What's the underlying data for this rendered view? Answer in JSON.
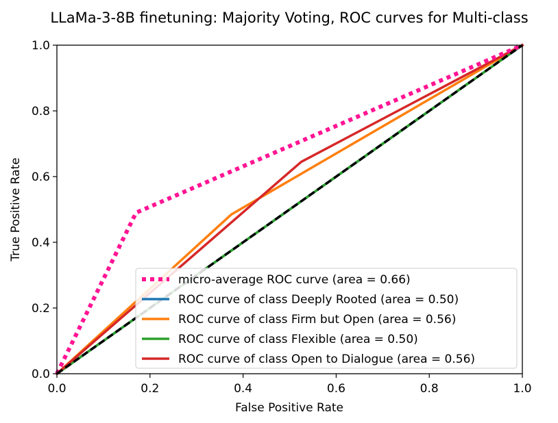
{
  "chart_data": {
    "type": "line",
    "title": "LLaMa-3-8B finetuning: Majority Voting, ROC curves for Multi-class",
    "xlabel": "False Positive Rate",
    "ylabel": "True Positive Rate",
    "xlim": [
      0.0,
      1.0
    ],
    "ylim": [
      0.0,
      1.0
    ],
    "xticks": [
      "0.0",
      "0.2",
      "0.4",
      "0.6",
      "0.8",
      "1.0"
    ],
    "yticks": [
      "0.0",
      "0.2",
      "0.4",
      "0.6",
      "0.8",
      "1.0"
    ],
    "grid": false,
    "legend_position": "lower right",
    "series": [
      {
        "name": "micro-average ROC curve (area = 0.66)",
        "color": "#ff1493",
        "style": "dotted",
        "x": [
          0.0,
          0.17,
          1.0
        ],
        "y": [
          0.0,
          0.49,
          1.0
        ]
      },
      {
        "name": "ROC curve of class Deeply Rooted (area = 0.50)",
        "color": "#1f77b4",
        "style": "solid",
        "x": [
          0.0,
          1.0
        ],
        "y": [
          0.0,
          1.0
        ]
      },
      {
        "name": "ROC curve of class Firm but Open (area = 0.56)",
        "color": "#ff7f0e",
        "style": "solid",
        "x": [
          0.0,
          0.375,
          1.0
        ],
        "y": [
          0.0,
          0.485,
          1.0
        ]
      },
      {
        "name": "ROC curve of class Flexible (area = 0.50)",
        "color": "#2ca02c",
        "style": "solid",
        "x": [
          0.0,
          1.0
        ],
        "y": [
          0.0,
          1.0
        ]
      },
      {
        "name": "ROC curve of class Open to Dialogue (area = 0.56)",
        "color": "#d62728",
        "style": "solid",
        "x": [
          0.0,
          0.525,
          1.0
        ],
        "y": [
          0.0,
          0.645,
          1.0
        ]
      }
    ],
    "reference_line": {
      "color": "#000000",
      "style": "dashed",
      "x": [
        0.0,
        1.0
      ],
      "y": [
        0.0,
        1.0
      ]
    }
  }
}
